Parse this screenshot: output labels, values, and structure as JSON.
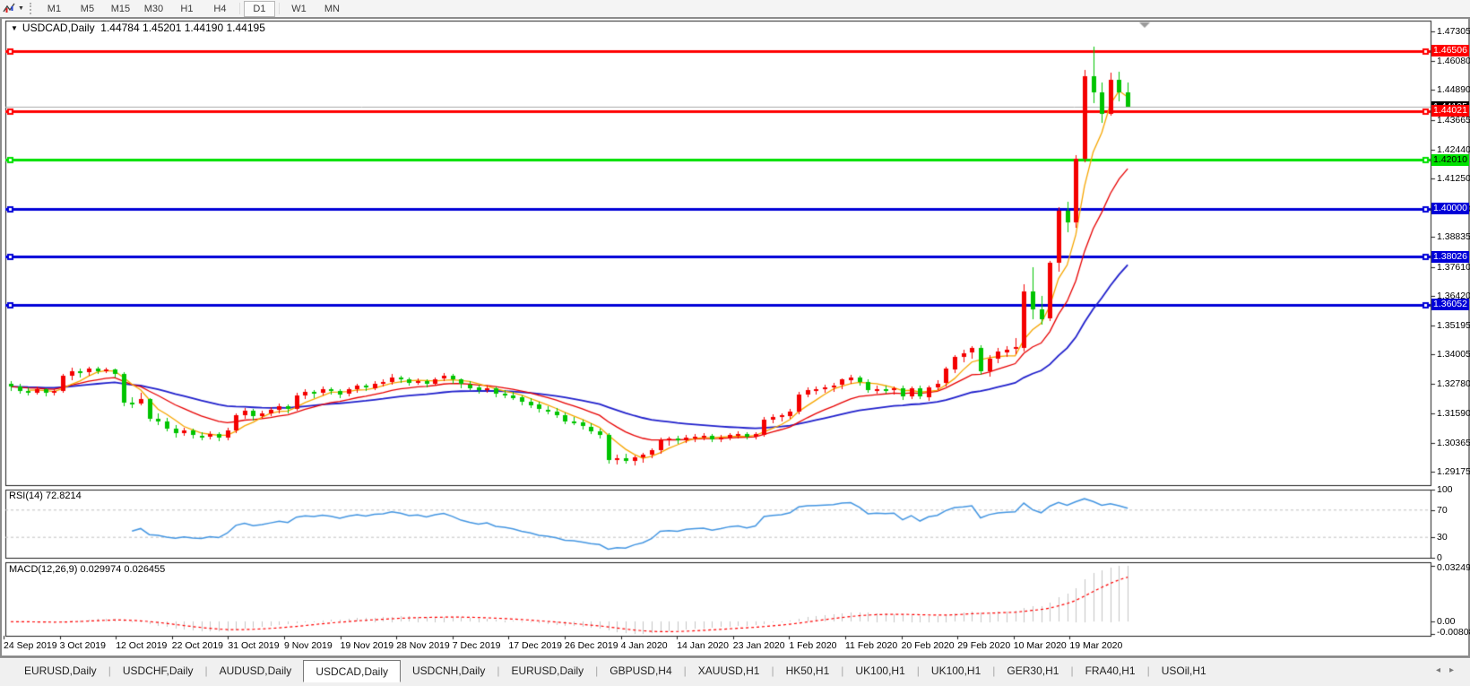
{
  "toolbar": {
    "tool_icon": "chart-indicator-tool",
    "timeframes": [
      "M1",
      "M5",
      "M15",
      "M30",
      "H1",
      "H4",
      "D1",
      "W1",
      "MN"
    ],
    "active_timeframe": "D1"
  },
  "chart": {
    "title": {
      "symbol": "USDCAD,Daily",
      "open": "1.44784",
      "high": "1.45201",
      "low": "1.44190",
      "close": "1.44195"
    },
    "price_axis": {
      "ticks": [
        "1.47305",
        "1.46080",
        "1.44890",
        "1.43665",
        "1.42440",
        "1.41250",
        "1.40000",
        "1.38835",
        "1.37610",
        "1.36420",
        "1.35195",
        "1.34005",
        "1.32780",
        "1.31590",
        "1.30365",
        "1.29175"
      ]
    },
    "hlines": [
      {
        "label": "1.46506",
        "value": 1.46506,
        "color": "#FF0000",
        "text": "#FFFFFF"
      },
      {
        "label": "1.44021",
        "value": 1.44021,
        "color": "#FF0000",
        "text": "#FFFFFF"
      },
      {
        "label": "1.42010",
        "value": 1.4201,
        "color": "#00E000",
        "text": "#000000"
      },
      {
        "label": "1.40000",
        "value": 1.4,
        "color": "#0000D8",
        "text": "#FFFFFF"
      },
      {
        "label": "1.38026",
        "value": 1.38026,
        "color": "#0000D8",
        "text": "#FFFFFF"
      },
      {
        "label": "1.36052",
        "value": 1.36052,
        "color": "#0000D8",
        "text": "#FFFFFF"
      }
    ],
    "current_price": {
      "label": "1.44195",
      "value": 1.44195,
      "color": "#000000",
      "text": "#FFFFFF"
    },
    "date_axis": [
      "24 Sep 2019",
      "3 Oct 2019",
      "12 Oct 2019",
      "22 Oct 2019",
      "31 Oct 2019",
      "9 Nov 2019",
      "19 Nov 2019",
      "28 Nov 2019",
      "7 Dec 2019",
      "17 Dec 2019",
      "26 Dec 2019",
      "4 Jan 2020",
      "14 Jan 2020",
      "23 Jan 2020",
      "1 Feb 2020",
      "11 Feb 2020",
      "20 Feb 2020",
      "29 Feb 2020",
      "10 Mar 2020",
      "19 Mar 2020"
    ],
    "colors": {
      "bull_candle": "#F40000",
      "bear_candle": "#00C400",
      "ma_fast": "#F7A600",
      "ma_mid": "#E80000",
      "ma_slow": "#2020CC",
      "bid_line": "#ABABAB",
      "rsi_line": "#4496E2",
      "rsi_levels": "#C0C0C0",
      "macd_bars": "#C4C4C4",
      "macd_signal": "#FF0000",
      "panel_border": "#1E1E1E",
      "shift_marker": "#9A9A9A"
    },
    "candles": [
      [
        1.328,
        1.3292,
        1.3252,
        1.3268
      ],
      [
        1.3268,
        1.3281,
        1.3241,
        1.325
      ],
      [
        1.325,
        1.3266,
        1.3231,
        1.3242
      ],
      [
        1.3242,
        1.3269,
        1.3236,
        1.3256
      ],
      [
        1.3256,
        1.3262,
        1.3227,
        1.324
      ],
      [
        1.324,
        1.3259,
        1.3233,
        1.3249
      ],
      [
        1.3249,
        1.3321,
        1.3243,
        1.3311
      ],
      [
        1.3311,
        1.3346,
        1.3296,
        1.3331
      ],
      [
        1.3331,
        1.3343,
        1.3306,
        1.3325
      ],
      [
        1.3325,
        1.3349,
        1.3311,
        1.3341
      ],
      [
        1.3341,
        1.3348,
        1.3319,
        1.333
      ],
      [
        1.333,
        1.3345,
        1.3321,
        1.3339
      ],
      [
        1.3339,
        1.3343,
        1.3306,
        1.3321
      ],
      [
        1.3321,
        1.3329,
        1.3189,
        1.3201
      ],
      [
        1.3201,
        1.3223,
        1.3177,
        1.3196
      ],
      [
        1.3196,
        1.3241,
        1.3191,
        1.3216
      ],
      [
        1.3216,
        1.3221,
        1.3124,
        1.3136
      ],
      [
        1.3136,
        1.3156,
        1.3109,
        1.3126
      ],
      [
        1.3126,
        1.3139,
        1.3084,
        1.3096
      ],
      [
        1.3096,
        1.3111,
        1.3061,
        1.3076
      ],
      [
        1.3076,
        1.3099,
        1.3067,
        1.3086
      ],
      [
        1.3086,
        1.3093,
        1.3051,
        1.3066
      ],
      [
        1.3066,
        1.3081,
        1.3047,
        1.3059
      ],
      [
        1.3059,
        1.3083,
        1.3049,
        1.3071
      ],
      [
        1.3071,
        1.3079,
        1.3041,
        1.3056
      ],
      [
        1.3056,
        1.3099,
        1.3049,
        1.3086
      ],
      [
        1.3086,
        1.3159,
        1.3077,
        1.3149
      ],
      [
        1.3149,
        1.3179,
        1.3134,
        1.3169
      ],
      [
        1.3169,
        1.3176,
        1.3129,
        1.3146
      ],
      [
        1.3146,
        1.3169,
        1.3134,
        1.3156
      ],
      [
        1.3156,
        1.3183,
        1.3147,
        1.3171
      ],
      [
        1.3171,
        1.3199,
        1.3159,
        1.3186
      ],
      [
        1.3186,
        1.3193,
        1.3157,
        1.3176
      ],
      [
        1.3176,
        1.3241,
        1.3167,
        1.3231
      ],
      [
        1.3231,
        1.3256,
        1.3217,
        1.3246
      ],
      [
        1.3246,
        1.3253,
        1.3221,
        1.3241
      ],
      [
        1.3241,
        1.3269,
        1.3231,
        1.3256
      ],
      [
        1.3256,
        1.3263,
        1.3234,
        1.3249
      ],
      [
        1.3249,
        1.3257,
        1.3221,
        1.3236
      ],
      [
        1.3236,
        1.3263,
        1.3227,
        1.3256
      ],
      [
        1.3256,
        1.3281,
        1.3244,
        1.3271
      ],
      [
        1.3271,
        1.3279,
        1.3249,
        1.3263
      ],
      [
        1.3263,
        1.3291,
        1.3254,
        1.3281
      ],
      [
        1.3281,
        1.3296,
        1.3267,
        1.3286
      ],
      [
        1.3286,
        1.3321,
        1.3277,
        1.3306
      ],
      [
        1.3306,
        1.3313,
        1.3284,
        1.3299
      ],
      [
        1.3299,
        1.3306,
        1.3271,
        1.3286
      ],
      [
        1.3286,
        1.3301,
        1.3274,
        1.3291
      ],
      [
        1.3291,
        1.3299,
        1.3267,
        1.3281
      ],
      [
        1.3281,
        1.3306,
        1.3271,
        1.3299
      ],
      [
        1.3299,
        1.3323,
        1.3289,
        1.3311
      ],
      [
        1.3311,
        1.3321,
        1.3281,
        1.3296
      ],
      [
        1.3296,
        1.3303,
        1.3261,
        1.3276
      ],
      [
        1.3276,
        1.3289,
        1.3251,
        1.3263
      ],
      [
        1.3263,
        1.3276,
        1.3239,
        1.3253
      ],
      [
        1.3253,
        1.3271,
        1.3243,
        1.3261
      ],
      [
        1.3261,
        1.3269,
        1.3224,
        1.3239
      ],
      [
        1.3239,
        1.3253,
        1.3221,
        1.3233
      ],
      [
        1.3233,
        1.3246,
        1.3211,
        1.3223
      ],
      [
        1.3223,
        1.3233,
        1.3194,
        1.3206
      ],
      [
        1.3206,
        1.3219,
        1.3179,
        1.3193
      ],
      [
        1.3193,
        1.3206,
        1.3161,
        1.3173
      ],
      [
        1.3173,
        1.3186,
        1.3154,
        1.3166
      ],
      [
        1.3166,
        1.3179,
        1.3139,
        1.3151
      ],
      [
        1.3151,
        1.3163,
        1.3114,
        1.3126
      ],
      [
        1.3126,
        1.3141,
        1.3107,
        1.3119
      ],
      [
        1.3119,
        1.3131,
        1.3091,
        1.3103
      ],
      [
        1.3103,
        1.3116,
        1.3071,
        1.3083
      ],
      [
        1.3083,
        1.3096,
        1.3057,
        1.3069
      ],
      [
        1.3069,
        1.3076,
        1.2951,
        1.2966
      ],
      [
        1.2966,
        1.2986,
        1.2947,
        1.2973
      ],
      [
        1.2973,
        1.2991,
        1.2949,
        1.2961
      ],
      [
        1.2961,
        1.2983,
        1.2944,
        1.2976
      ],
      [
        1.2976,
        1.2996,
        1.2957,
        1.2986
      ],
      [
        1.2986,
        1.3013,
        1.2971,
        1.3006
      ],
      [
        1.3006,
        1.3059,
        1.2994,
        1.3049
      ],
      [
        1.3049,
        1.3063,
        1.3027,
        1.3053
      ],
      [
        1.3053,
        1.3066,
        1.3034,
        1.3047
      ],
      [
        1.3047,
        1.3069,
        1.3037,
        1.3059
      ],
      [
        1.3059,
        1.3073,
        1.3041,
        1.3063
      ],
      [
        1.3063,
        1.3076,
        1.3047,
        1.3066
      ],
      [
        1.3066,
        1.3073,
        1.3039,
        1.3051
      ],
      [
        1.3051,
        1.3069,
        1.3041,
        1.3059
      ],
      [
        1.3059,
        1.3076,
        1.3047,
        1.3069
      ],
      [
        1.3069,
        1.3083,
        1.3054,
        1.3073
      ],
      [
        1.3073,
        1.3081,
        1.3051,
        1.3061
      ],
      [
        1.3061,
        1.3079,
        1.3049,
        1.3071
      ],
      [
        1.3071,
        1.3141,
        1.3061,
        1.3133
      ],
      [
        1.3133,
        1.3153,
        1.3117,
        1.3143
      ],
      [
        1.3143,
        1.3159,
        1.3124,
        1.3149
      ],
      [
        1.3149,
        1.3176,
        1.3134,
        1.3166
      ],
      [
        1.3166,
        1.3246,
        1.3154,
        1.3236
      ],
      [
        1.3236,
        1.3263,
        1.3221,
        1.3253
      ],
      [
        1.3253,
        1.3269,
        1.3234,
        1.3259
      ],
      [
        1.3259,
        1.3276,
        1.3241,
        1.3266
      ],
      [
        1.3266,
        1.3283,
        1.3247,
        1.3273
      ],
      [
        1.3273,
        1.3303,
        1.3257,
        1.3296
      ],
      [
        1.3296,
        1.3316,
        1.3279,
        1.3306
      ],
      [
        1.3306,
        1.3313,
        1.3271,
        1.3286
      ],
      [
        1.3286,
        1.3296,
        1.3241,
        1.3253
      ],
      [
        1.3253,
        1.3271,
        1.3237,
        1.3259
      ],
      [
        1.3259,
        1.3273,
        1.3239,
        1.3256
      ],
      [
        1.3256,
        1.3269,
        1.3237,
        1.3261
      ],
      [
        1.3261,
        1.3273,
        1.3214,
        1.3226
      ],
      [
        1.3226,
        1.3269,
        1.3217,
        1.3261
      ],
      [
        1.3261,
        1.3271,
        1.3214,
        1.3226
      ],
      [
        1.3226,
        1.3273,
        1.3211,
        1.3266
      ],
      [
        1.3266,
        1.3293,
        1.3254,
        1.3281
      ],
      [
        1.3281,
        1.3349,
        1.3267,
        1.3341
      ],
      [
        1.3341,
        1.3399,
        1.3324,
        1.3391
      ],
      [
        1.3391,
        1.3421,
        1.3369,
        1.3406
      ],
      [
        1.3406,
        1.3436,
        1.3384,
        1.3426
      ],
      [
        1.3426,
        1.3439,
        1.3317,
        1.3331
      ],
      [
        1.3331,
        1.3396,
        1.3309,
        1.3381
      ],
      [
        1.3381,
        1.3426,
        1.3364,
        1.3411
      ],
      [
        1.3411,
        1.3433,
        1.3387,
        1.3421
      ],
      [
        1.3421,
        1.3469,
        1.3401,
        1.3429
      ],
      [
        1.3429,
        1.3691,
        1.3414,
        1.3661
      ],
      [
        1.3661,
        1.3759,
        1.3544,
        1.3586
      ],
      [
        1.3586,
        1.3641,
        1.3524,
        1.3546
      ],
      [
        1.3546,
        1.3786,
        1.3537,
        1.3776
      ],
      [
        1.3776,
        1.4006,
        1.3739,
        1.3991
      ],
      [
        1.3991,
        1.4029,
        1.3904,
        1.3943
      ],
      [
        1.3943,
        1.4221,
        1.3921,
        1.4206
      ],
      [
        1.4206,
        1.4571,
        1.4189,
        1.4546
      ],
      [
        1.4546,
        1.4668,
        1.4434,
        1.4481
      ],
      [
        1.4481,
        1.4521,
        1.4354,
        1.4391
      ],
      [
        1.4391,
        1.4561,
        1.4384,
        1.4531
      ],
      [
        1.4531,
        1.4566,
        1.4444,
        1.4479
      ],
      [
        1.44784,
        1.45201,
        1.4419,
        1.44195
      ]
    ]
  },
  "rsi": {
    "label": "RSI(14) 72.8214",
    "ticks": [
      "100",
      "70",
      "30",
      "0"
    ],
    "tick_values": [
      100,
      70,
      30,
      0
    ],
    "levels": [
      70,
      30
    ]
  },
  "macd": {
    "label": "MACD(12,26,9) 0.029974 0.026455",
    "ticks": {
      "max": "0.032493",
      "zero": "0.00",
      "min": "-0.008086"
    }
  },
  "tabs": {
    "items": [
      "EURUSD,Daily",
      "USDCHF,Daily",
      "AUDUSD,Daily",
      "USDCAD,Daily",
      "USDCNH,Daily",
      "EURUSD,Daily",
      "GBPUSD,H4",
      "XAUUSD,H1",
      "HK50,H1",
      "UK100,H1",
      "UK100,H1",
      "GER30,H1",
      "FRA40,H1",
      "USOil,H1"
    ],
    "active_index": 3,
    "scroll_left_icon": "◂",
    "scroll_right_icon": "▸"
  }
}
